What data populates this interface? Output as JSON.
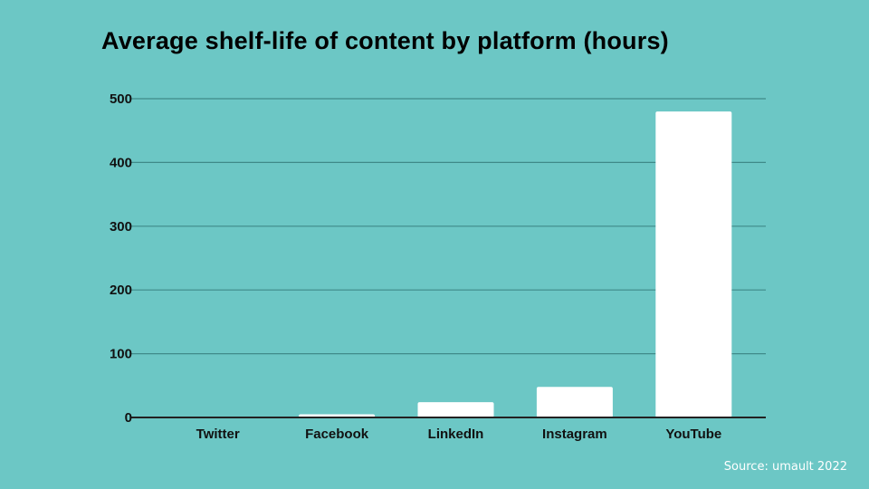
{
  "colors": {
    "background": "#6cc7c5",
    "bar": "#ffffff",
    "gridline": "#3f8a89",
    "axis": "#222222",
    "text": "#000000"
  },
  "source": "Source: umault 2022",
  "chart_data": {
    "type": "bar",
    "title": "Average shelf-life of content by platform (hours)",
    "xlabel": "",
    "ylabel": "",
    "categories": [
      "Twitter",
      "Facebook",
      "LinkedIn",
      "Instagram",
      "YouTube"
    ],
    "values": [
      0.3,
      5,
      24,
      48,
      480
    ],
    "ylim": [
      0,
      500
    ],
    "yticks": [
      0,
      100,
      200,
      300,
      400,
      500
    ],
    "grid": true,
    "legend": "none"
  }
}
